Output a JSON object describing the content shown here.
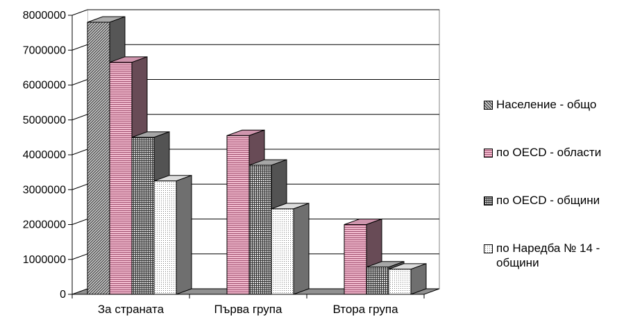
{
  "chart_data": {
    "type": "bar",
    "title": "",
    "xlabel": "",
    "ylabel": "",
    "categories": [
      "За страната",
      "Първа група",
      "Втора група"
    ],
    "ylim": [
      0,
      8000000
    ],
    "y_ticks": [
      "0",
      "1000000",
      "2000000",
      "3000000",
      "4000000",
      "5000000",
      "6000000",
      "7000000",
      "8000000"
    ],
    "grid": true,
    "legend_position": "right",
    "series": [
      {
        "name": "Население - общо",
        "values": [
          7800000,
          0,
          0
        ],
        "color": "#c0c0c0",
        "pattern": "diag"
      },
      {
        "name": "по OECD - области",
        "values": [
          6650000,
          4550000,
          2000000
        ],
        "color": "#e6a6c0",
        "pattern": "hlines"
      },
      {
        "name": "по OECD - общини",
        "values": [
          4500000,
          3700000,
          780000
        ],
        "color": "#b8b8b8",
        "pattern": "grid"
      },
      {
        "name": "по Наредба № 14 - общини",
        "values": [
          3250000,
          2450000,
          720000
        ],
        "color": "#f6f6f6",
        "pattern": "dots"
      }
    ]
  }
}
